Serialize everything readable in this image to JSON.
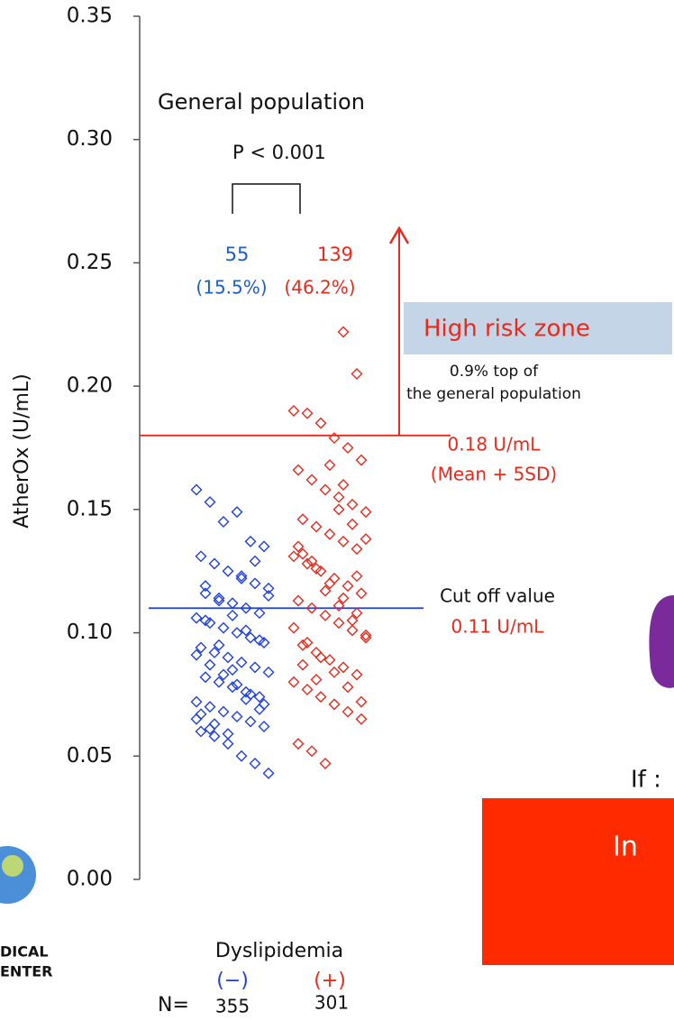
{
  "chart_data": {
    "type": "strip",
    "y_label": "AtherOx (U/mL)",
    "ylim": [
      0,
      0.35
    ],
    "yticks": [
      {
        "value": 0,
        "label": "0.00"
      },
      {
        "value": 0.05,
        "label": "0.05"
      },
      {
        "value": 0.1,
        "label": "0.10"
      },
      {
        "value": 0.15,
        "label": "0.15"
      },
      {
        "value": 0.2,
        "label": "0.20"
      },
      {
        "value": 0.25,
        "label": "0.25"
      },
      {
        "value": 0.3,
        "label": "0.30"
      },
      {
        "value": 0.35,
        "label": "0.35"
      }
    ],
    "x_label": "Dyslipidemia",
    "categories": [
      "(−)",
      "(+)"
    ],
    "series": [
      {
        "color": "#1f3fe0",
        "values": [
          0.158,
          0.153,
          0.145,
          0.149,
          0.137,
          0.135,
          0.131,
          0.128,
          0.125,
          0.122,
          0.12,
          0.118,
          0.116,
          0.114,
          0.112,
          0.11,
          0.108,
          0.106,
          0.104,
          0.102,
          0.1,
          0.098,
          0.096,
          0.094,
          0.092,
          0.09,
          0.088,
          0.086,
          0.084,
          0.082,
          0.08,
          0.078,
          0.076,
          0.074,
          0.072,
          0.07,
          0.068,
          0.066,
          0.064,
          0.062,
          0.06,
          0.058,
          0.055,
          0.05,
          0.047,
          0.043,
          0.119,
          0.113,
          0.107,
          0.101,
          0.097,
          0.091,
          0.087,
          0.083,
          0.079,
          0.075,
          0.071,
          0.067,
          0.063,
          0.059,
          0.123,
          0.129,
          0.115,
          0.105,
          0.095,
          0.085,
          0.073,
          0.069,
          0.065,
          0.061
        ]
      },
      {
        "color": "#e8291c",
        "values": [
          0.222,
          0.205,
          0.19,
          0.189,
          0.185,
          0.179,
          0.175,
          0.17,
          0.166,
          0.162,
          0.158,
          0.155,
          0.152,
          0.149,
          0.146,
          0.143,
          0.14,
          0.137,
          0.134,
          0.131,
          0.128,
          0.125,
          0.122,
          0.119,
          0.116,
          0.113,
          0.11,
          0.107,
          0.104,
          0.101,
          0.098,
          0.095,
          0.092,
          0.089,
          0.086,
          0.083,
          0.08,
          0.077,
          0.074,
          0.071,
          0.068,
          0.065,
          0.055,
          0.052,
          0.047,
          0.15,
          0.144,
          0.138,
          0.132,
          0.126,
          0.12,
          0.114,
          0.108,
          0.102,
          0.096,
          0.09,
          0.084,
          0.078,
          0.072,
          0.135,
          0.129,
          0.117,
          0.111,
          0.105,
          0.099,
          0.087,
          0.081,
          0.168,
          0.16,
          0.123
        ]
      }
    ],
    "reference_lines": [
      {
        "value": 0.18,
        "color": "#e8291c"
      },
      {
        "value": 0.11,
        "color": "#1f3fe0"
      }
    ],
    "annotations": {
      "population": "General population",
      "p_value": "P < 0.001",
      "count_neg": 55,
      "pct_neg": "(15.5%)",
      "count_pos": 139,
      "pct_pos": "(46.2%)",
      "high_risk": "High risk zone",
      "top_line1": "0.9% top of",
      "top_line2": "the general population",
      "threshold": "0.18 U/mL",
      "threshold_def": "(Mean + 5SD)",
      "cutoff": "Cut off value",
      "cutoff_value": "0.11 U/mL",
      "n_label": "N=",
      "n_neg": 355,
      "n_pos": 301
    }
  },
  "side": {
    "if_text": "If :",
    "box_text": "In",
    "logo_line1": "DICAL",
    "logo_line2": "ENTER"
  }
}
